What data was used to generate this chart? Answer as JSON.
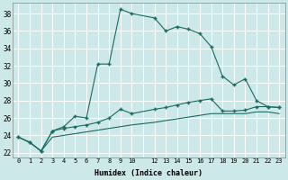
{
  "xlabel": "Humidex (Indice chaleur)",
  "background_color": "#cce8e8",
  "grid_color": "#e8f8f8",
  "line_color": "#1a6b60",
  "xlim": [
    -0.5,
    23.5
  ],
  "ylim": [
    21.5,
    39.2
  ],
  "yticks": [
    22,
    24,
    26,
    28,
    30,
    32,
    34,
    36,
    38
  ],
  "xtick_positions": [
    0,
    1,
    2,
    3,
    4,
    5,
    6,
    7,
    8,
    9,
    10,
    12,
    13,
    14,
    15,
    16,
    17,
    18,
    19,
    20,
    21,
    22,
    23
  ],
  "xtick_labels": [
    "0",
    "1",
    "2",
    "3",
    "4",
    "5",
    "6",
    "7",
    "8",
    "9",
    "10",
    "12",
    "13",
    "14",
    "15",
    "16",
    "17",
    "18",
    "19",
    "20",
    "21",
    "22",
    "23"
  ],
  "series1_x": [
    0,
    1,
    2,
    3,
    4,
    5,
    6,
    7,
    8,
    9,
    10,
    12,
    13,
    14,
    15,
    16,
    17,
    18,
    19,
    20,
    21,
    22,
    23
  ],
  "series1_y": [
    23.8,
    23.2,
    22.2,
    24.5,
    25.0,
    26.2,
    26.0,
    32.2,
    32.2,
    38.5,
    38.0,
    37.5,
    36.0,
    36.5,
    36.2,
    35.7,
    34.2,
    30.8,
    29.8,
    30.5,
    28.0,
    27.3,
    27.2
  ],
  "series2_x": [
    0,
    1,
    2,
    3,
    4,
    5,
    6,
    7,
    8,
    9,
    10,
    12,
    13,
    14,
    15,
    16,
    17,
    18,
    19,
    20,
    21,
    22,
    23
  ],
  "series2_y": [
    23.8,
    23.2,
    22.2,
    24.5,
    24.8,
    25.0,
    25.2,
    25.5,
    26.0,
    27.0,
    26.5,
    27.0,
    27.2,
    27.5,
    27.8,
    28.0,
    28.2,
    26.8,
    26.8,
    26.9,
    27.3,
    27.3,
    27.2
  ],
  "series3_x": [
    0,
    1,
    2,
    3,
    4,
    5,
    6,
    7,
    8,
    9,
    10,
    12,
    13,
    14,
    15,
    16,
    17,
    18,
    19,
    20,
    21,
    22,
    23
  ],
  "series3_y": [
    23.8,
    23.2,
    22.2,
    23.8,
    24.0,
    24.2,
    24.4,
    24.6,
    24.8,
    25.0,
    25.2,
    25.5,
    25.7,
    25.9,
    26.1,
    26.3,
    26.5,
    26.5,
    26.5,
    26.5,
    26.7,
    26.7,
    26.5
  ]
}
